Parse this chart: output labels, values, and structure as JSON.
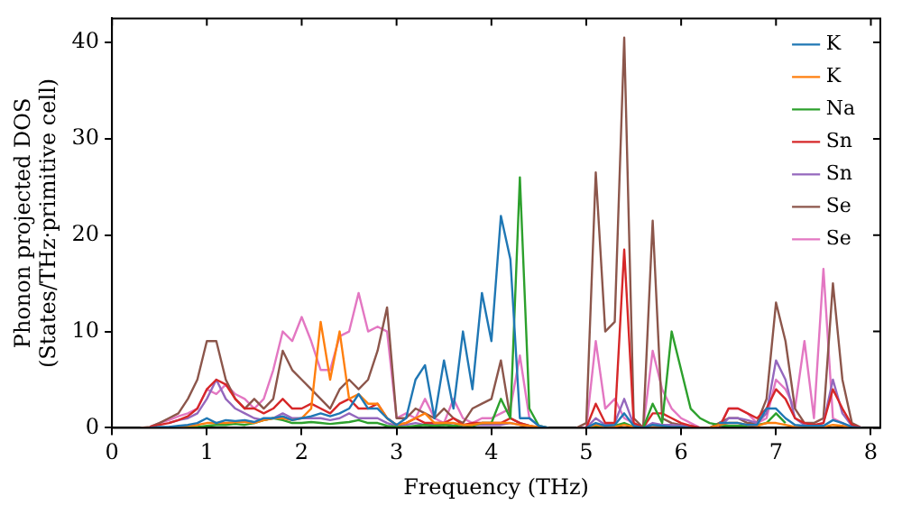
{
  "chart_data": {
    "type": "line",
    "xlabel": "Frequency (THz)",
    "ylabel": "Phonon projected DOS\n(States/THz·primitive cell)",
    "x": [
      0.3,
      0.4,
      0.5,
      0.6,
      0.7,
      0.8,
      0.9,
      1.0,
      1.1,
      1.2,
      1.3,
      1.4,
      1.5,
      1.6,
      1.7,
      1.8,
      1.9,
      2.0,
      2.1,
      2.2,
      2.3,
      2.4,
      2.5,
      2.6,
      2.7,
      2.8,
      2.9,
      3.0,
      3.1,
      3.2,
      3.3,
      3.4,
      3.5,
      3.6,
      3.7,
      3.8,
      3.9,
      4.0,
      4.1,
      4.2,
      4.3,
      4.4,
      4.5,
      4.6,
      4.7,
      4.8,
      4.9,
      5.0,
      5.1,
      5.2,
      5.3,
      5.4,
      5.5,
      5.6,
      5.7,
      5.8,
      5.9,
      6.0,
      6.1,
      6.2,
      6.3,
      6.4,
      6.5,
      6.6,
      6.7,
      6.8,
      6.9,
      7.0,
      7.1,
      7.2,
      7.3,
      7.4,
      7.5,
      7.6,
      7.7,
      7.8,
      7.9
    ],
    "series": [
      {
        "name": "K",
        "color": "#1f77b4",
        "values": [
          null,
          0,
          0.1,
          0.1,
          0.2,
          0.3,
          0.5,
          1,
          0.5,
          0.8,
          0.7,
          0.8,
          0.6,
          1,
          1,
          1.2,
          0.8,
          1,
          1.2,
          1.5,
          1.2,
          1.5,
          2,
          3.5,
          2,
          2,
          1,
          0.3,
          1,
          5,
          6.5,
          1,
          7,
          2,
          10,
          4,
          14,
          9,
          22,
          17.5,
          1,
          1,
          0.2,
          0,
          null,
          null,
          null,
          0,
          0.5,
          0.2,
          0.3,
          1.5,
          0.2,
          0,
          0.3,
          0.2,
          0.1,
          0.1,
          0,
          null,
          null,
          0.5,
          0.5,
          0.5,
          0.3,
          0.3,
          2,
          2,
          1,
          0.3,
          0.2,
          0.2,
          0.2,
          0.8,
          0.5,
          0.1,
          0
        ]
      },
      {
        "name": "K",
        "color": "#ff7f0e",
        "values": [
          null,
          null,
          null,
          0.1,
          0.1,
          0.2,
          0.3,
          0.5,
          0.5,
          0.5,
          0.6,
          0.6,
          0.5,
          0.8,
          1,
          1,
          0.8,
          1,
          2,
          11,
          5,
          10,
          3,
          3.5,
          2.5,
          2.5,
          1,
          0.3,
          0.5,
          1,
          1.5,
          0.5,
          0.5,
          0.5,
          0.3,
          0.3,
          0.5,
          0.5,
          0.5,
          0.5,
          0.3,
          0.2,
          0.1,
          0,
          null,
          null,
          null,
          0,
          0.3,
          0.1,
          0.1,
          0.3,
          0.1,
          0,
          0.1,
          0.1,
          0.1,
          0,
          0,
          null,
          0,
          0.3,
          0.5,
          0.5,
          0.3,
          0.2,
          0.5,
          0.5,
          0.3,
          0.1,
          0.1,
          0.1,
          0.1,
          0.3,
          0.2,
          0,
          0
        ]
      },
      {
        "name": "Na",
        "color": "#2ca02c",
        "values": [
          null,
          null,
          null,
          null,
          0,
          0.1,
          0.1,
          0.2,
          0.3,
          0.3,
          0.4,
          0.3,
          0.5,
          0.8,
          1,
          0.8,
          0.5,
          0.5,
          0.6,
          0.5,
          0.4,
          0.5,
          0.6,
          0.8,
          0.5,
          0.5,
          0.2,
          0.1,
          0.1,
          0.2,
          0.3,
          0.2,
          0.3,
          0.2,
          0.3,
          0.2,
          0.5,
          0.5,
          3,
          1,
          26,
          2,
          0.2,
          0,
          null,
          null,
          null,
          0,
          0.2,
          0.1,
          0.2,
          0.5,
          0.1,
          0,
          2.5,
          0.5,
          10,
          6,
          2,
          1,
          0.5,
          0.3,
          0.2,
          0.2,
          0.2,
          0.3,
          0.5,
          1.5,
          0.5,
          null,
          null,
          null,
          null,
          null,
          null,
          null,
          null
        ]
      },
      {
        "name": "Sn",
        "color": "#d62728",
        "values": [
          null,
          0.1,
          0.3,
          0.5,
          0.8,
          1.2,
          2,
          4,
          5,
          4.5,
          3,
          2,
          2,
          1.5,
          2,
          3,
          2,
          2,
          2.5,
          2,
          1.5,
          2.5,
          3,
          2,
          2,
          2.5,
          1,
          0.3,
          0.5,
          1,
          0.5,
          0.5,
          0.5,
          1,
          0.3,
          0.5,
          0.5,
          0.5,
          0.5,
          1,
          0.5,
          0.2,
          0,
          null,
          null,
          null,
          null,
          0,
          2.5,
          0.5,
          0.5,
          18.5,
          0.5,
          0,
          1.5,
          1.5,
          1,
          0.5,
          0.2,
          0,
          null,
          0,
          2,
          2,
          1.5,
          1,
          2,
          4,
          3,
          1,
          0.5,
          0.3,
          0.5,
          4,
          2,
          0.3,
          0
        ]
      },
      {
        "name": "Sn",
        "color": "#9467bd",
        "values": [
          null,
          null,
          null,
          0.5,
          0.8,
          1,
          1.5,
          3,
          5,
          3,
          2,
          1.5,
          1,
          0.8,
          1,
          1.5,
          1,
          1,
          1,
          1,
          0.8,
          1,
          1.5,
          1,
          1,
          1,
          0.5,
          0.2,
          0.3,
          0.5,
          0.3,
          0.3,
          0.3,
          0.5,
          0.2,
          0.3,
          0.3,
          0.3,
          0.3,
          0.5,
          0.3,
          0.1,
          0,
          null,
          null,
          null,
          null,
          0,
          1,
          0.3,
          0.5,
          3,
          0.3,
          0,
          0.5,
          0.3,
          0.3,
          0.2,
          0.1,
          0,
          null,
          0,
          1,
          1,
          0.8,
          0.5,
          1.5,
          7,
          5,
          1,
          0.3,
          0.2,
          0.5,
          5,
          1.5,
          0.2,
          0
        ]
      },
      {
        "name": "Se",
        "color": "#8c564b",
        "values": [
          0,
          0.1,
          0.5,
          1,
          1.5,
          3,
          5,
          9,
          9,
          5,
          3,
          2,
          3,
          2,
          3,
          8,
          6,
          5,
          4,
          3,
          2,
          4,
          5,
          4,
          5,
          8,
          12.5,
          1,
          1,
          2,
          1.5,
          1,
          2,
          1,
          0.5,
          2,
          2.5,
          3,
          7,
          1,
          0.5,
          0.2,
          0,
          null,
          null,
          null,
          0,
          0.5,
          26.5,
          10,
          11,
          40.5,
          1,
          0,
          21.5,
          1,
          0.5,
          0.3,
          0.2,
          0,
          0,
          0.5,
          1,
          1,
          0.5,
          0.5,
          3,
          13,
          9,
          2,
          0.5,
          0.5,
          1,
          15,
          5,
          0.5,
          0
        ]
      },
      {
        "name": "Se",
        "color": "#e377c2",
        "values": [
          null,
          0.1,
          0.5,
          0.8,
          1.2,
          1.5,
          2,
          4,
          3.5,
          4.5,
          3.5,
          3,
          2,
          3,
          6,
          10,
          9,
          11.5,
          9,
          6,
          6,
          9.5,
          10,
          14,
          10,
          10.5,
          10,
          1,
          1.5,
          1,
          3,
          1,
          0.5,
          3,
          1,
          0.5,
          1,
          1,
          1.5,
          2,
          7.5,
          1,
          0.2,
          0,
          null,
          null,
          0,
          0,
          9,
          2,
          3,
          1,
          0.5,
          0,
          8,
          4,
          2,
          1,
          0.5,
          0,
          0,
          0,
          2,
          2,
          1.5,
          0.5,
          1,
          5,
          4,
          2,
          9,
          1,
          16.5,
          1,
          0.5,
          0,
          0
        ]
      }
    ],
    "xlim": [
      0,
      8.1
    ],
    "xticks": [
      0,
      1,
      2,
      3,
      4,
      5,
      6,
      7,
      8
    ],
    "ylim": [
      0,
      42.5
    ],
    "yticks": [
      0,
      10,
      20,
      30,
      40
    ],
    "grid": false,
    "legend": "top right",
    "marker": "none",
    "line_style": "solid"
  }
}
